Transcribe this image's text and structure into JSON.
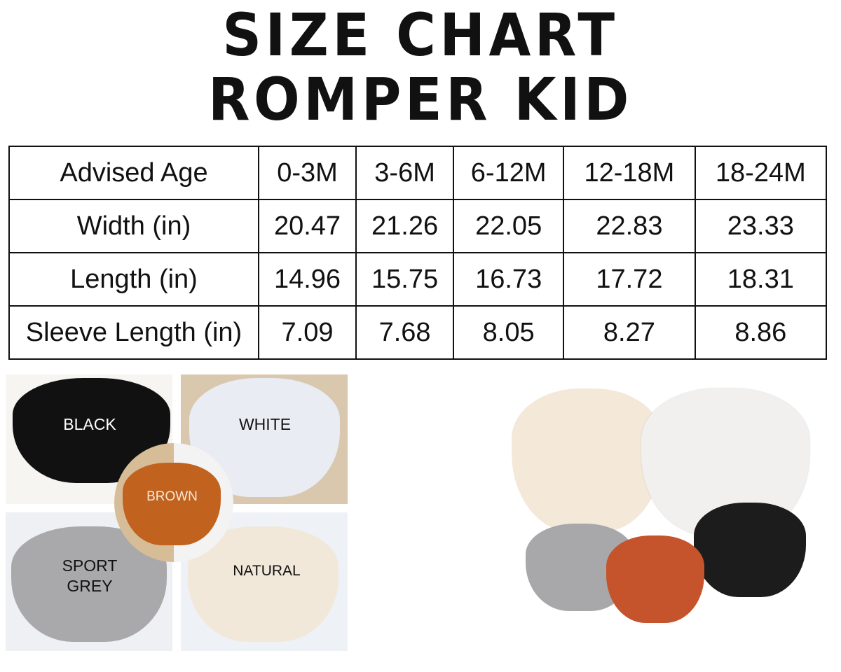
{
  "title": {
    "line1": "SIZE CHART",
    "line2": "ROMPER KID"
  },
  "table": {
    "header": [
      "Advised Age",
      "0-3M",
      "3-6M",
      "6-12M",
      "12-18M",
      "18-24M"
    ],
    "rows": [
      [
        "Width (in)",
        "20.47",
        "21.26",
        "22.05",
        "22.83",
        "23.33"
      ],
      [
        "Length (in)",
        "14.96",
        "15.75",
        "16.73",
        "17.72",
        "18.31"
      ],
      [
        "Sleeve Length (in)",
        "7.09",
        "7.68",
        "8.05",
        "8.27",
        "8.86"
      ]
    ]
  },
  "colors": {
    "black": {
      "label": "BLACK",
      "hex": "#111111"
    },
    "white": {
      "label": "WHITE",
      "hex": "#e9ecf3"
    },
    "brown": {
      "label": "BROWN",
      "hex": "#c2621f"
    },
    "grey": {
      "label_line1": "SPORT",
      "label_line2": "GREY",
      "hex": "#a9a9ab"
    },
    "natural": {
      "label": "NATURAL",
      "hex": "#f1e8da"
    }
  }
}
